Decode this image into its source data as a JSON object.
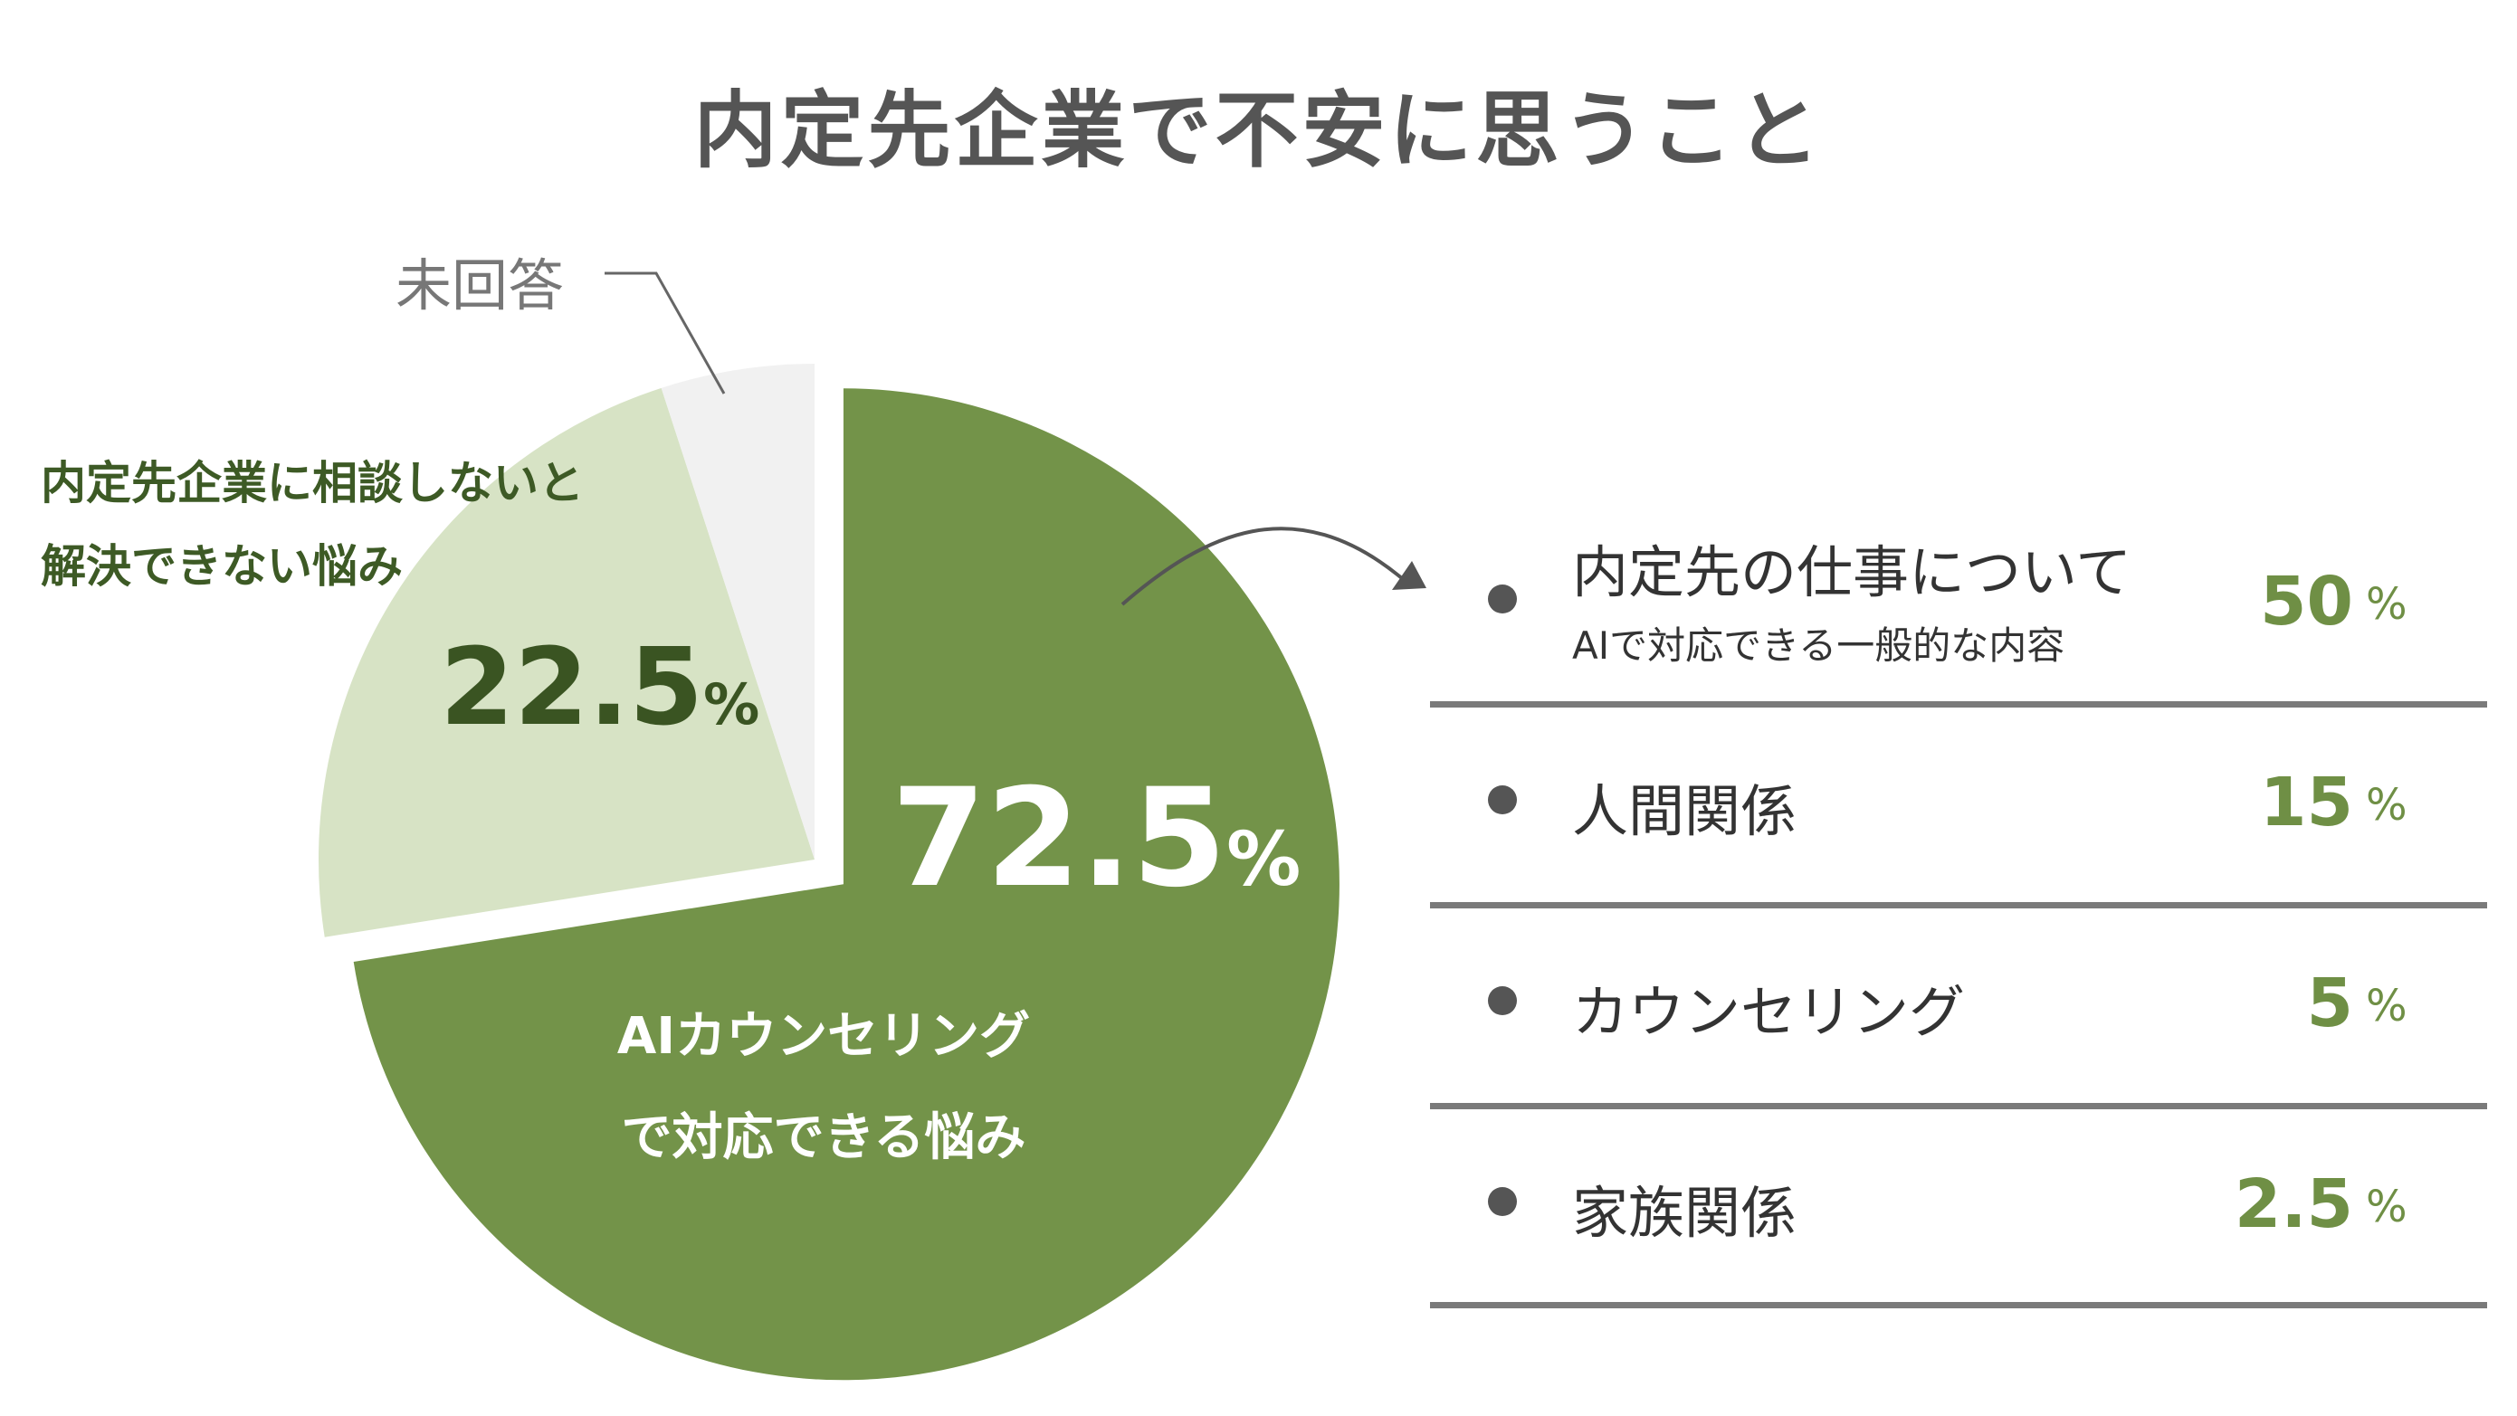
{
  "title": "内定先企業で不安に思うこと",
  "chart_data": {
    "type": "pie",
    "title": "内定先企業で不安に思うこと",
    "slices": [
      {
        "label_lines": [
          "AIカウンセリング",
          "で対応できる悩み"
        ],
        "value": 72.5,
        "value_text": "72.5",
        "unit": "%",
        "color": "#739349",
        "exploded": true
      },
      {
        "label_lines": [
          "内定先企業に相談しないと",
          "解決できない悩み"
        ],
        "value": 22.5,
        "value_text": "22.5",
        "unit": "%",
        "color": "#d7e3c5",
        "exploded": false
      },
      {
        "label": "未回答",
        "value": 5.0,
        "color": "#f1f1f1",
        "exploded": false
      }
    ],
    "breakdown": {
      "of": "AIカウンセリングで対応できる悩み",
      "items": [
        {
          "label": "内定先の仕事について",
          "sublabel": "AIで対応できる一般的な内容",
          "value": 50,
          "value_text": "50",
          "unit": "%"
        },
        {
          "label": "人間関係",
          "value": 15,
          "value_text": "15",
          "unit": "%"
        },
        {
          "label": "カウンセリング",
          "value": 5,
          "value_text": "5",
          "unit": "%"
        },
        {
          "label": "家族関係",
          "value": 2.5,
          "value_text": "2.5",
          "unit": "%"
        }
      ]
    }
  },
  "colors": {
    "title": "#555555",
    "accent_green": "#739349",
    "light_green": "#d7e3c5",
    "unanswered_gray": "#f1f1f1",
    "value_green": "#6f8f45",
    "rule_gray": "#7a7a7a"
  }
}
